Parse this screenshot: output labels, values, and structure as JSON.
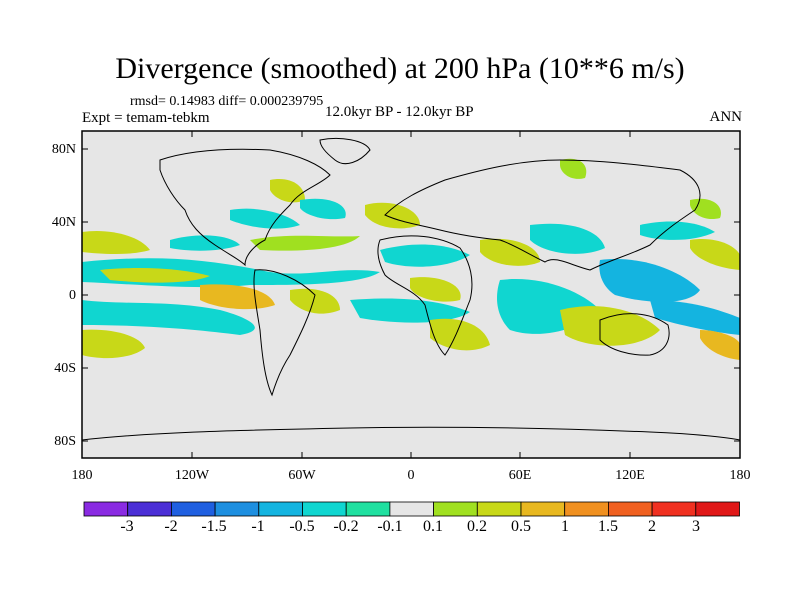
{
  "title": "Divergence (smoothed) at 200 hPa (10**6 m/s)",
  "stats_line": "rmsd= 0.14983 diff= 0.000239795",
  "experiment": "Expt = temam-tebkm",
  "period": "12.0kyr BP - 12.0kyr BP",
  "season": "ANN",
  "lat_labels": [
    "80N",
    "40N",
    "0",
    "40S",
    "80S"
  ],
  "lon_labels": [
    "180",
    "120W",
    "60W",
    "0",
    "60E",
    "120E",
    "180"
  ],
  "colorbar": {
    "labels": [
      "-3",
      "-2",
      "-1.5",
      "-1",
      "-0.5",
      "-0.2",
      "-0.1",
      "0.1",
      "0.2",
      "0.5",
      "1",
      "1.5",
      "2",
      "3"
    ],
    "colors": [
      "#8a2be2",
      "#4b2fd6",
      "#1f5fe0",
      "#1e8fe0",
      "#14b4e0",
      "#10d6d0",
      "#20e0a0",
      "#e6e6e6",
      "#a0e020",
      "#c8d818",
      "#e8b820",
      "#f09020",
      "#f06020",
      "#f03020",
      "#e01818"
    ]
  },
  "colors": {
    "background": "#ffffff",
    "neutral": "#e6e6e6",
    "land": "#000000"
  }
}
